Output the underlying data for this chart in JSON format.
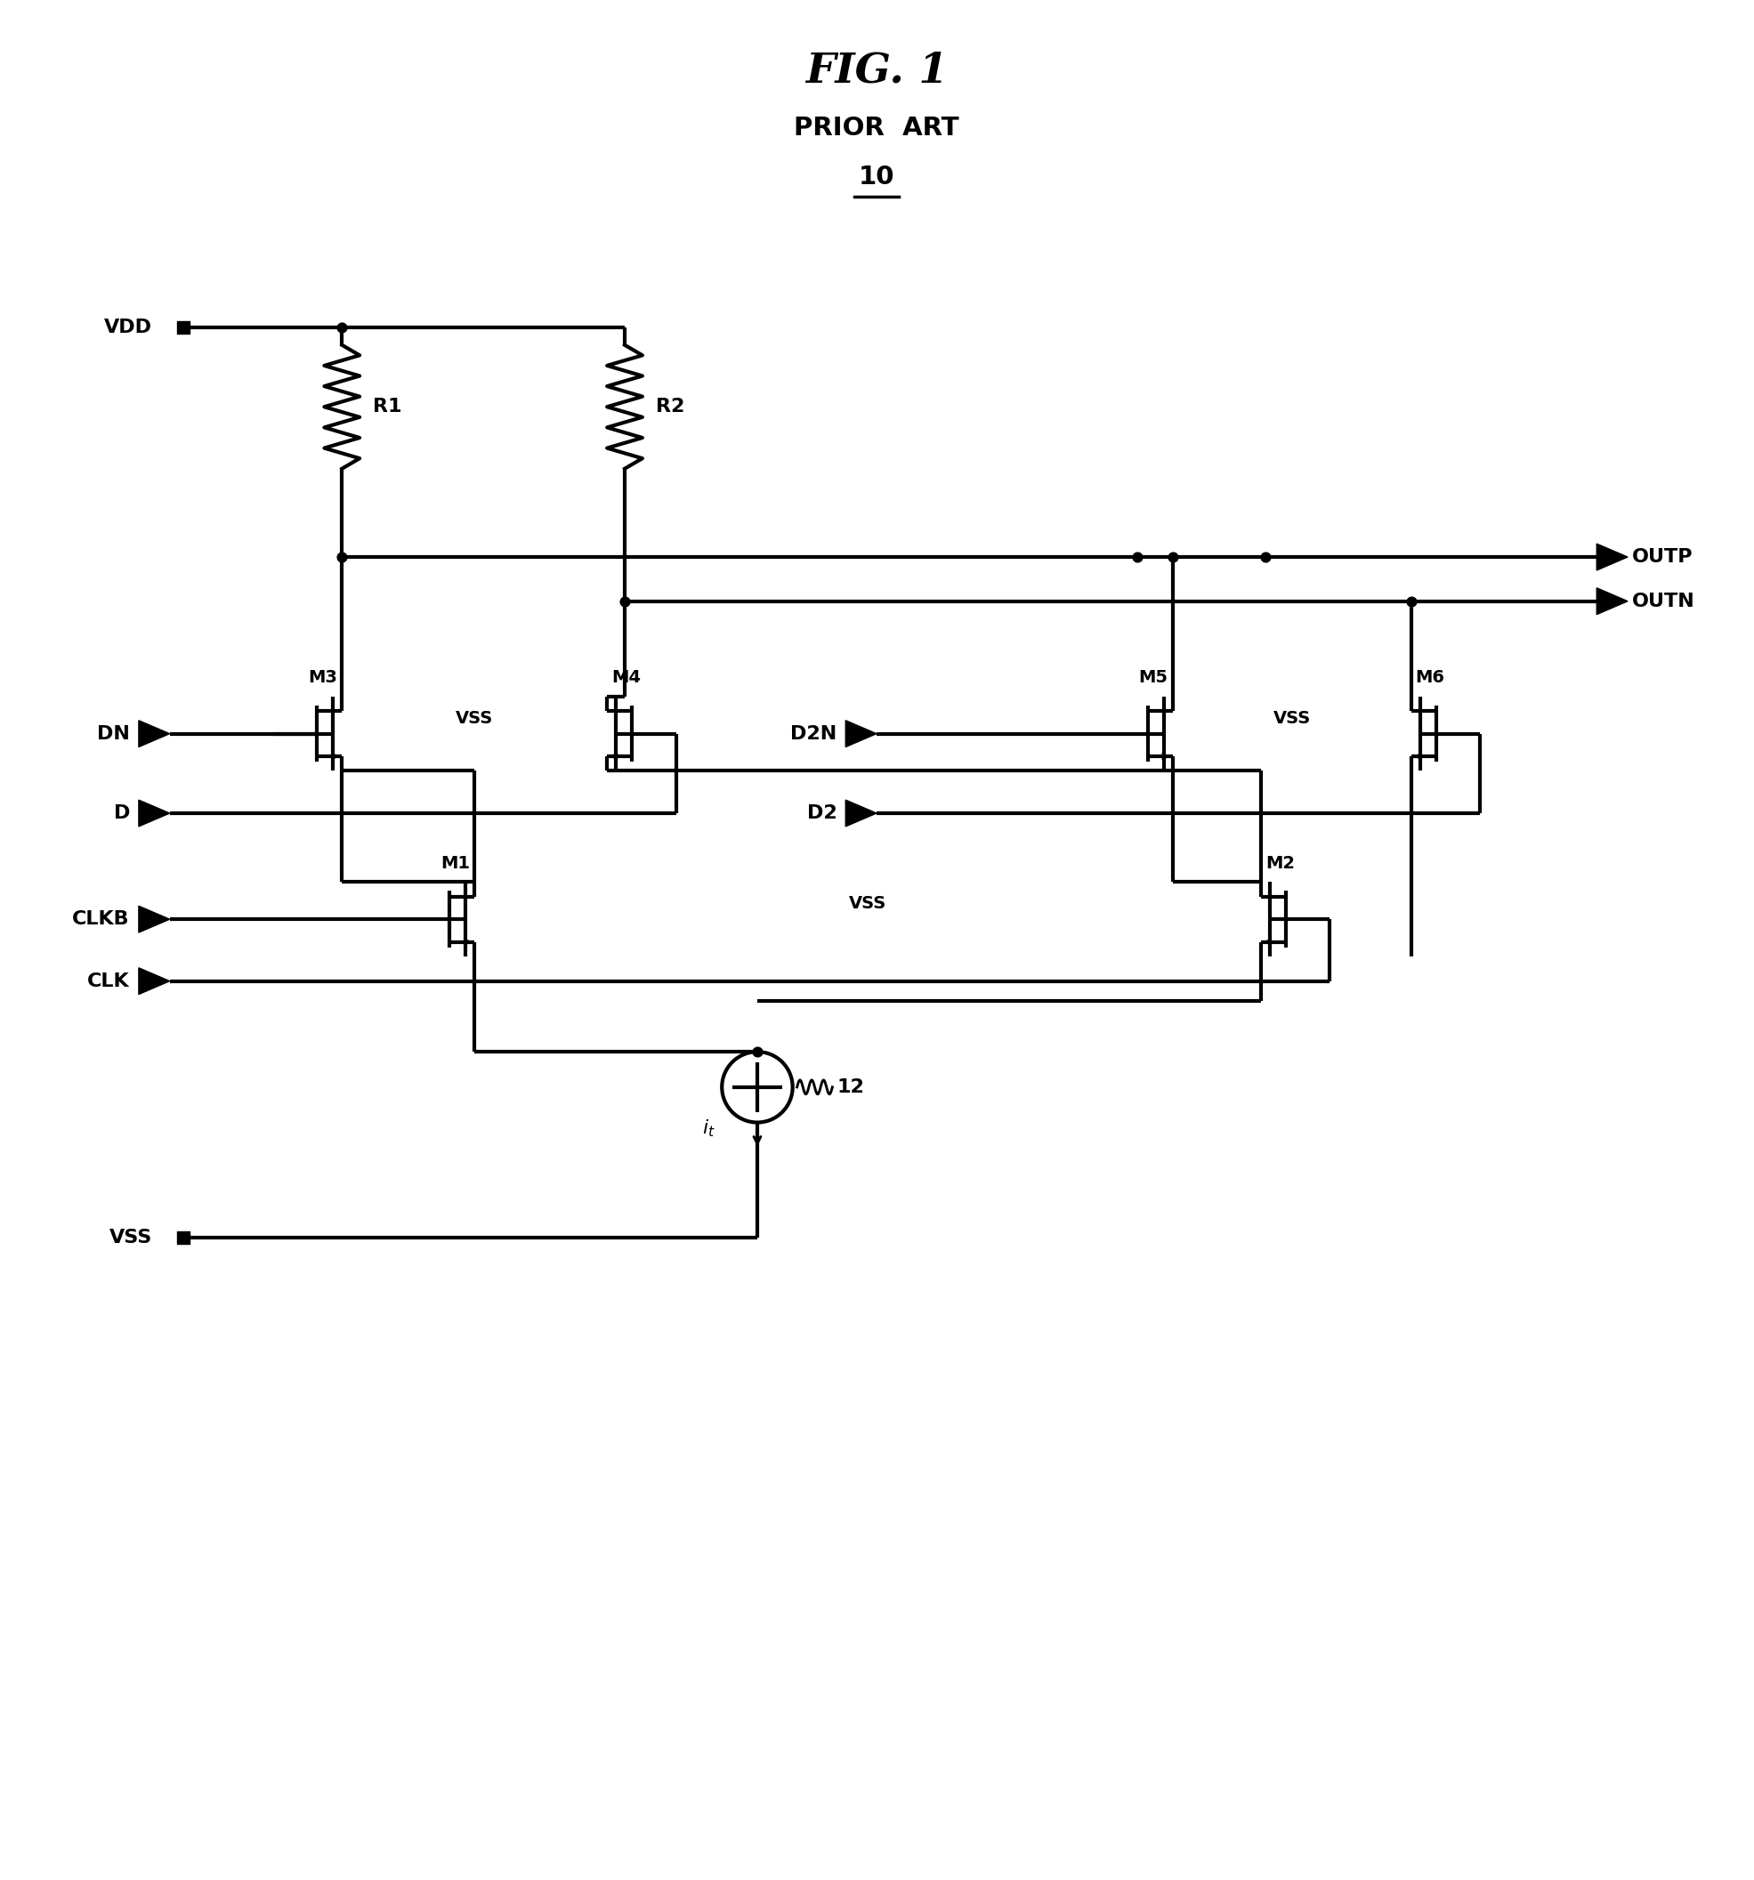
{
  "title": "FIG. 1",
  "subtitle": "PRIOR ART",
  "label_10": "10",
  "background_color": "#ffffff",
  "line_color": "#000000",
  "line_width": 3.0,
  "fig_width": 19.71,
  "fig_height": 21.13
}
